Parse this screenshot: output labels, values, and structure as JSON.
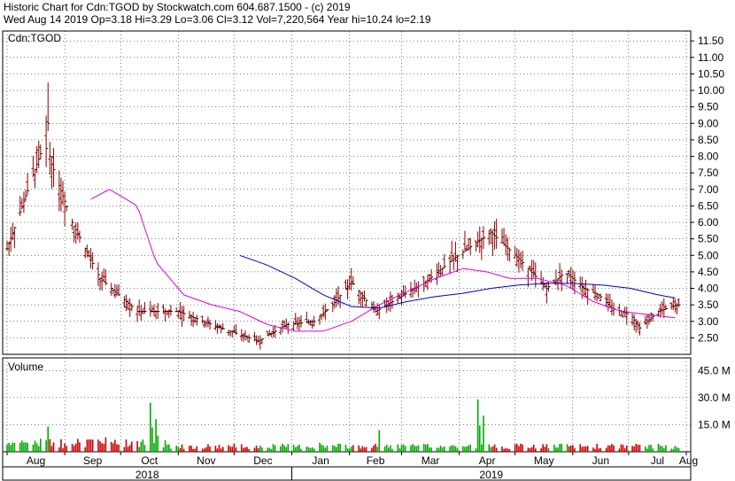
{
  "header": {
    "line1": "Historic Chart for Cdn:TGOD by Stockwatch.com 604.687.1500 - (c) 2019",
    "line2": "Wed Aug 14 2019  Op=3.18  Hi=3.29  Lo=3.06  Cl=3.12  Vol=7,220,564  Year hi=10.24  lo=2.19"
  },
  "colors": {
    "background": "#ffffff",
    "grid": "#000000",
    "bar": "#8b0000",
    "ma_short": "#e000e0",
    "ma_long": "#0000c8",
    "volume_up": "#00aa00",
    "volume_down": "#cc0000"
  },
  "chart_data": {
    "type": "ohlc",
    "price_panel_label": "Cdn:TGOD",
    "volume_panel_label": "Volume",
    "price_ylim": [
      2.0,
      11.8
    ],
    "price_ticks": [
      "11.50",
      "11.00",
      "10.50",
      "10.00",
      "9.50",
      "9.00",
      "8.50",
      "8.00",
      "7.50",
      "7.00",
      "6.50",
      "6.00",
      "5.50",
      "5.00",
      "4.50",
      "4.00",
      "3.50",
      "3.00",
      "2.50"
    ],
    "volume_ylim": [
      0,
      52
    ],
    "volume_ticks": [
      "45.0 M",
      "30.0 M",
      "15.0 M"
    ],
    "months": [
      "Aug",
      "Sep",
      "Oct",
      "Nov",
      "Dec",
      "Jan",
      "Feb",
      "Mar",
      "Apr",
      "May",
      "Jun",
      "Jul",
      "Aug"
    ],
    "years": [
      "2018",
      "2019"
    ],
    "grid": true,
    "series": [
      {
        "days": [
          0,
          20,
          35,
          50,
          70,
          92,
          110,
          135,
          150,
          165,
          175,
          185,
          192,
          198,
          210,
          225,
          240,
          260,
          275,
          290,
          300,
          310,
          318,
          325,
          335,
          340,
          350,
          360
        ],
        "close": [
          5.2,
          8.4,
          6.0,
          4.3,
          3.3,
          3.3,
          2.9,
          2.4,
          2.9,
          3.0,
          3.5,
          4.2,
          3.7,
          3.3,
          3.7,
          4.2,
          4.9,
          5.7,
          4.9,
          4.0,
          4.5,
          4.0,
          3.8,
          3.4,
          3.2,
          2.8,
          3.3,
          3.5
        ]
      },
      {
        "name": "short MA",
        "days": [
          45,
          55,
          70,
          80,
          95,
          110,
          125,
          140,
          155,
          170,
          185,
          200,
          215,
          230,
          245,
          258,
          270,
          285,
          300,
          315,
          330,
          345,
          360
        ],
        "values": [
          6.7,
          7.0,
          6.5,
          4.8,
          3.8,
          3.5,
          3.3,
          2.9,
          2.7,
          2.7,
          3.0,
          3.5,
          3.9,
          4.3,
          4.6,
          4.5,
          4.3,
          4.3,
          4.1,
          3.6,
          3.3,
          3.2,
          3.1
        ]
      },
      {
        "name": "long MA",
        "days": [
          125,
          140,
          155,
          170,
          185,
          200,
          215,
          230,
          245,
          260,
          275,
          290,
          305,
          320,
          335,
          350,
          360
        ],
        "values": [
          5.0,
          4.7,
          4.3,
          3.8,
          3.45,
          3.4,
          3.6,
          3.75,
          3.85,
          4.0,
          4.1,
          4.15,
          4.15,
          4.1,
          4.0,
          3.8,
          3.7
        ]
      }
    ],
    "volume_spikes": [
      {
        "day": 22,
        "value": 14
      },
      {
        "day": 75,
        "value": 30
      },
      {
        "day": 77,
        "value": 27
      },
      {
        "day": 80,
        "value": 18
      },
      {
        "day": 53,
        "value": 8
      },
      {
        "day": 145,
        "value": 7
      },
      {
        "day": 200,
        "value": 12
      },
      {
        "day": 253,
        "value": 29
      },
      {
        "day": 256,
        "value": 20
      },
      {
        "day": 167,
        "value": 10
      }
    ]
  }
}
